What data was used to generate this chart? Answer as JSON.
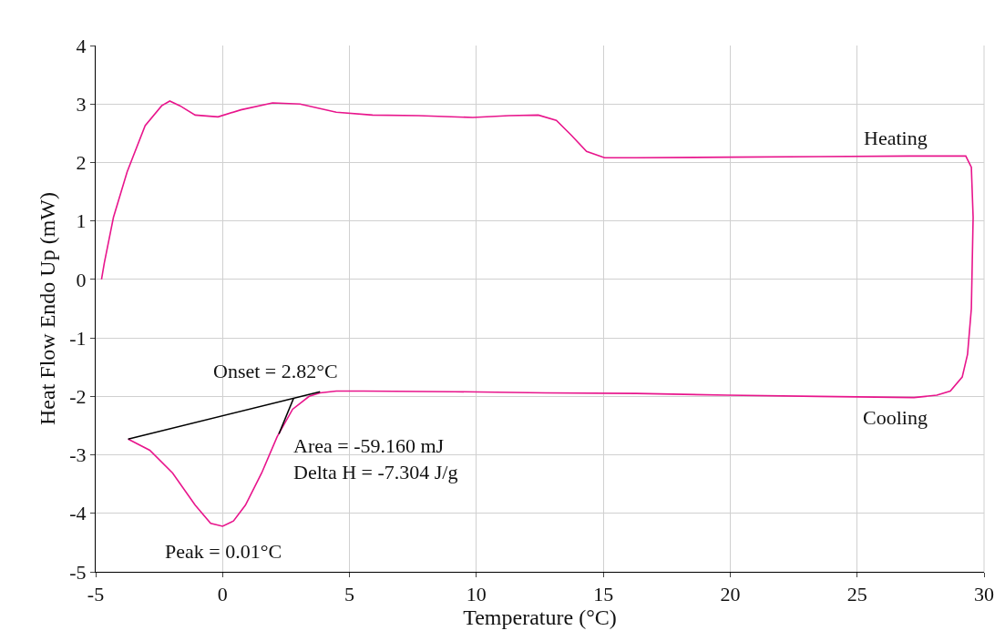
{
  "chart_data": {
    "type": "line",
    "xlabel": "Temperature (°C)",
    "ylabel": "Heat Flow Endo Up (mW)",
    "xlim": [
      -5,
      30
    ],
    "xticks": [
      -5,
      0,
      5,
      10,
      15,
      20,
      25,
      30
    ],
    "ylim": [
      -5,
      4
    ],
    "yticks": [
      -5,
      -4,
      -3,
      -2,
      -1,
      0,
      1,
      2,
      3,
      4
    ],
    "grid": true,
    "legend": false,
    "marker": "none",
    "line_style": "solid",
    "series": [
      {
        "color": "#e8158c",
        "x": [
          -4.77,
          -4.66,
          -4.3,
          -3.76,
          -3.05,
          -2.4,
          -2.08,
          -1.68,
          -1.08,
          -0.18,
          0.72,
          1.97,
          3.05,
          4.48,
          5.91,
          7.71,
          9.86,
          11.29,
          12.44,
          13.15,
          13.73,
          14.34,
          15.05,
          16.3,
          19.89,
          23.47,
          27.06,
          29.28,
          29.5,
          29.57,
          29.5,
          29.35,
          29.14,
          28.67,
          28.14,
          27.24,
          23.47,
          19.9,
          16.3,
          12.72,
          9.14,
          5.56,
          4.48,
          3.84,
          3.41,
          2.76,
          2.15,
          1.54,
          0.9,
          0.43,
          0.0,
          -0.47,
          -1.08,
          -1.97,
          -2.87,
          -3.72
        ],
        "values": [
          0,
          0.28,
          1.06,
          1.84,
          2.63,
          2.97,
          3.05,
          2.97,
          2.81,
          2.78,
          2.9,
          3.02,
          3.0,
          2.86,
          2.81,
          2.8,
          2.77,
          2.8,
          2.81,
          2.72,
          2.47,
          2.19,
          2.08,
          2.08,
          2.09,
          2.1,
          2.11,
          2.11,
          1.92,
          1.06,
          -0.5,
          -1.28,
          -1.67,
          -1.91,
          -1.98,
          -2.02,
          -2.0,
          -1.98,
          -1.95,
          -1.94,
          -1.92,
          -1.91,
          -1.91,
          -1.94,
          -2.0,
          -2.22,
          -2.69,
          -3.31,
          -3.86,
          -4.13,
          -4.22,
          -4.17,
          -3.86,
          -3.31,
          -2.92,
          -2.73
        ]
      },
      {
        "color": "#000000",
        "x": [
          -3.72,
          3.84
        ],
        "values": [
          -2.73,
          -1.92
        ]
      },
      {
        "color": "#000000",
        "x": [
          2.8,
          2.22
        ],
        "values": [
          -2.03,
          -2.64
        ]
      }
    ],
    "annotations": [
      {
        "text": "Heating",
        "x": 26.5,
        "y": 2.11
      },
      {
        "text": "Cooling",
        "x": 26.5,
        "y": -2.02
      },
      {
        "text": "Onset = 2.82°C",
        "x": 2.82,
        "y": -2.03
      },
      "Area = -59.160 mJ",
      "Delta H = -7.304 J/g",
      {
        "text": "Peak = 0.01°C",
        "x": 0.01,
        "y": -4.22
      }
    ]
  }
}
